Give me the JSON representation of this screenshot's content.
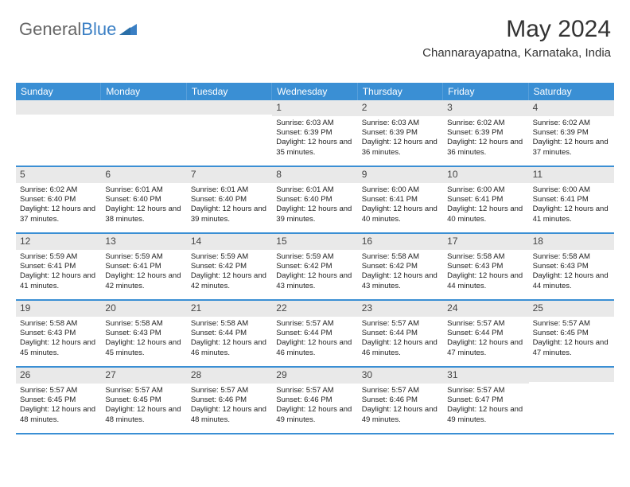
{
  "brand": {
    "part1": "General",
    "part2": "Blue"
  },
  "title": "May 2024",
  "location": "Channarayapatna, Karnataka, India",
  "colors": {
    "header_bg": "#3a8fd4",
    "daynum_bg": "#e9e9e9",
    "row_border": "#3a8fd4",
    "text": "#222222",
    "title_text": "#333333"
  },
  "weekdays": [
    "Sunday",
    "Monday",
    "Tuesday",
    "Wednesday",
    "Thursday",
    "Friday",
    "Saturday"
  ],
  "weeks": [
    [
      null,
      null,
      null,
      {
        "n": "1",
        "sr": "6:03 AM",
        "ss": "6:39 PM",
        "dl": "12 hours and 35 minutes."
      },
      {
        "n": "2",
        "sr": "6:03 AM",
        "ss": "6:39 PM",
        "dl": "12 hours and 36 minutes."
      },
      {
        "n": "3",
        "sr": "6:02 AM",
        "ss": "6:39 PM",
        "dl": "12 hours and 36 minutes."
      },
      {
        "n": "4",
        "sr": "6:02 AM",
        "ss": "6:39 PM",
        "dl": "12 hours and 37 minutes."
      }
    ],
    [
      {
        "n": "5",
        "sr": "6:02 AM",
        "ss": "6:40 PM",
        "dl": "12 hours and 37 minutes."
      },
      {
        "n": "6",
        "sr": "6:01 AM",
        "ss": "6:40 PM",
        "dl": "12 hours and 38 minutes."
      },
      {
        "n": "7",
        "sr": "6:01 AM",
        "ss": "6:40 PM",
        "dl": "12 hours and 39 minutes."
      },
      {
        "n": "8",
        "sr": "6:01 AM",
        "ss": "6:40 PM",
        "dl": "12 hours and 39 minutes."
      },
      {
        "n": "9",
        "sr": "6:00 AM",
        "ss": "6:41 PM",
        "dl": "12 hours and 40 minutes."
      },
      {
        "n": "10",
        "sr": "6:00 AM",
        "ss": "6:41 PM",
        "dl": "12 hours and 40 minutes."
      },
      {
        "n": "11",
        "sr": "6:00 AM",
        "ss": "6:41 PM",
        "dl": "12 hours and 41 minutes."
      }
    ],
    [
      {
        "n": "12",
        "sr": "5:59 AM",
        "ss": "6:41 PM",
        "dl": "12 hours and 41 minutes."
      },
      {
        "n": "13",
        "sr": "5:59 AM",
        "ss": "6:41 PM",
        "dl": "12 hours and 42 minutes."
      },
      {
        "n": "14",
        "sr": "5:59 AM",
        "ss": "6:42 PM",
        "dl": "12 hours and 42 minutes."
      },
      {
        "n": "15",
        "sr": "5:59 AM",
        "ss": "6:42 PM",
        "dl": "12 hours and 43 minutes."
      },
      {
        "n": "16",
        "sr": "5:58 AM",
        "ss": "6:42 PM",
        "dl": "12 hours and 43 minutes."
      },
      {
        "n": "17",
        "sr": "5:58 AM",
        "ss": "6:43 PM",
        "dl": "12 hours and 44 minutes."
      },
      {
        "n": "18",
        "sr": "5:58 AM",
        "ss": "6:43 PM",
        "dl": "12 hours and 44 minutes."
      }
    ],
    [
      {
        "n": "19",
        "sr": "5:58 AM",
        "ss": "6:43 PM",
        "dl": "12 hours and 45 minutes."
      },
      {
        "n": "20",
        "sr": "5:58 AM",
        "ss": "6:43 PM",
        "dl": "12 hours and 45 minutes."
      },
      {
        "n": "21",
        "sr": "5:58 AM",
        "ss": "6:44 PM",
        "dl": "12 hours and 46 minutes."
      },
      {
        "n": "22",
        "sr": "5:57 AM",
        "ss": "6:44 PM",
        "dl": "12 hours and 46 minutes."
      },
      {
        "n": "23",
        "sr": "5:57 AM",
        "ss": "6:44 PM",
        "dl": "12 hours and 46 minutes."
      },
      {
        "n": "24",
        "sr": "5:57 AM",
        "ss": "6:44 PM",
        "dl": "12 hours and 47 minutes."
      },
      {
        "n": "25",
        "sr": "5:57 AM",
        "ss": "6:45 PM",
        "dl": "12 hours and 47 minutes."
      }
    ],
    [
      {
        "n": "26",
        "sr": "5:57 AM",
        "ss": "6:45 PM",
        "dl": "12 hours and 48 minutes."
      },
      {
        "n": "27",
        "sr": "5:57 AM",
        "ss": "6:45 PM",
        "dl": "12 hours and 48 minutes."
      },
      {
        "n": "28",
        "sr": "5:57 AM",
        "ss": "6:46 PM",
        "dl": "12 hours and 48 minutes."
      },
      {
        "n": "29",
        "sr": "5:57 AM",
        "ss": "6:46 PM",
        "dl": "12 hours and 49 minutes."
      },
      {
        "n": "30",
        "sr": "5:57 AM",
        "ss": "6:46 PM",
        "dl": "12 hours and 49 minutes."
      },
      {
        "n": "31",
        "sr": "5:57 AM",
        "ss": "6:47 PM",
        "dl": "12 hours and 49 minutes."
      },
      null
    ]
  ],
  "labels": {
    "sunrise": "Sunrise:",
    "sunset": "Sunset:",
    "daylight": "Daylight:"
  }
}
